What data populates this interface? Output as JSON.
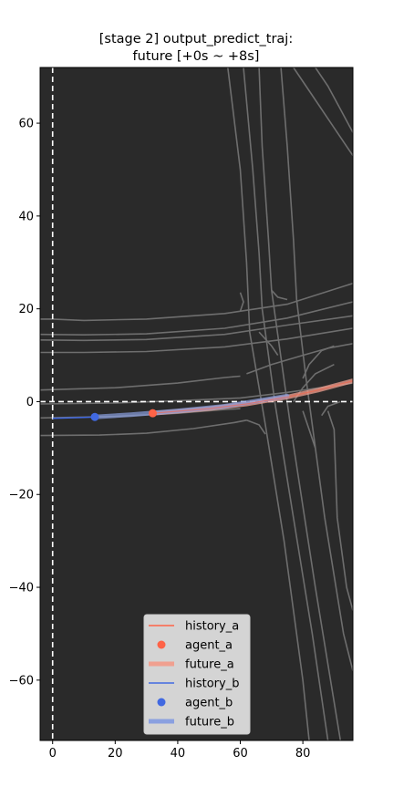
{
  "chart_data": {
    "type": "line",
    "title_lines": [
      "[stage 2] output_predict_traj:",
      "future [+0s ~ +8s]"
    ],
    "xlim": [
      -4,
      96
    ],
    "ylim": [
      -73,
      72
    ],
    "xticks": [
      0,
      20,
      40,
      60,
      80
    ],
    "yticks": [
      -60,
      -40,
      -20,
      0,
      20,
      40,
      60
    ],
    "xtick_labels": [
      "0",
      "20",
      "40",
      "60",
      "80"
    ],
    "ytick_labels": [
      "−60",
      "−40",
      "−20",
      "0",
      "20",
      "40",
      "60"
    ],
    "grid": false,
    "legend_position": "lower center",
    "colors": {
      "background": "#2a2a2a",
      "lane": "#6e6e6e",
      "history_a": "#ff6347",
      "future_a": "#f0a090",
      "history_b": "#4169e1",
      "future_b": "#8aa0e0",
      "future_overlap": "#8a6aa8",
      "axis_cross": "#ffffff"
    },
    "series": [
      {
        "name": "history_a",
        "kind": "line",
        "x": [],
        "y": []
      },
      {
        "name": "agent_a",
        "kind": "point",
        "x": [
          32
        ],
        "y": [
          -2.5
        ]
      },
      {
        "name": "future_a",
        "kind": "thick_line",
        "x": [
          32,
          50,
          62,
          75,
          85,
          96
        ],
        "y": [
          -2.5,
          -1.5,
          -0.5,
          1.0,
          2.5,
          4.5
        ]
      },
      {
        "name": "history_b",
        "kind": "line",
        "x": [
          0,
          5,
          10,
          13.5
        ],
        "y": [
          -3.6,
          -3.5,
          -3.4,
          -3.3
        ]
      },
      {
        "name": "agent_b",
        "kind": "point",
        "x": [
          13.5
        ],
        "y": [
          -3.3
        ]
      },
      {
        "name": "future_b",
        "kind": "thick_line",
        "x": [
          13.5,
          25,
          40,
          55,
          66,
          75
        ],
        "y": [
          -3.3,
          -2.8,
          -2.0,
          -1.0,
          0.2,
          1.2
        ]
      }
    ],
    "lanes": [
      [
        [
          -4,
          17.8
        ],
        [
          0,
          17.8
        ],
        [
          10,
          17.5
        ],
        [
          30,
          17.8
        ],
        [
          55,
          19
        ],
        [
          75,
          21
        ],
        [
          96,
          25.5
        ]
      ],
      [
        [
          -4,
          14.5
        ],
        [
          10,
          14.4
        ],
        [
          30,
          14.6
        ],
        [
          55,
          15.8
        ],
        [
          75,
          18
        ],
        [
          96,
          21.5
        ]
      ],
      [
        [
          -4,
          13.3
        ],
        [
          10,
          13.2
        ],
        [
          30,
          13.4
        ],
        [
          55,
          14.5
        ],
        [
          75,
          16.5
        ],
        [
          96,
          18.5
        ]
      ],
      [
        [
          -4,
          10.6
        ],
        [
          10,
          10.6
        ],
        [
          30,
          10.8
        ],
        [
          55,
          11.8
        ],
        [
          75,
          13.5
        ],
        [
          96,
          15.8
        ]
      ],
      [
        [
          -4,
          2.5
        ],
        [
          20,
          3
        ],
        [
          40,
          4
        ],
        [
          55,
          5.2
        ],
        [
          60,
          5.5
        ]
      ],
      [
        [
          62,
          6
        ],
        [
          70,
          8
        ],
        [
          80,
          10
        ],
        [
          88,
          11.5
        ],
        [
          96,
          12.5
        ]
      ],
      [
        [
          -4,
          -0.5
        ],
        [
          20,
          -0.3
        ],
        [
          40,
          0.2
        ],
        [
          60,
          0.8
        ],
        [
          75,
          2
        ],
        [
          96,
          4
        ]
      ],
      [
        [
          -4,
          -3.5
        ],
        [
          20,
          -3.2
        ],
        [
          40,
          -2.5
        ],
        [
          55,
          -1.7
        ],
        [
          60,
          -1.5
        ]
      ],
      [
        [
          -4,
          -7.3
        ],
        [
          15,
          -7.2
        ],
        [
          30,
          -6.8
        ],
        [
          45,
          -5.8
        ],
        [
          58,
          -4.5
        ],
        [
          62,
          -4
        ]
      ],
      [
        [
          56,
          72
        ],
        [
          60,
          50
        ],
        [
          62,
          30
        ],
        [
          63,
          15
        ],
        [
          68,
          -5
        ],
        [
          74,
          -30
        ],
        [
          80,
          -60
        ],
        [
          82,
          -73
        ]
      ],
      [
        [
          61,
          72
        ],
        [
          64,
          50
        ],
        [
          66,
          32
        ],
        [
          67,
          20
        ],
        [
          71,
          0
        ],
        [
          77,
          -25
        ],
        [
          83,
          -50
        ],
        [
          88,
          -73
        ]
      ],
      [
        [
          66,
          72
        ],
        [
          67,
          55
        ],
        [
          69,
          35
        ],
        [
          70,
          24
        ],
        [
          76,
          -5
        ],
        [
          84,
          -40
        ],
        [
          92,
          -73
        ]
      ],
      [
        [
          73,
          72
        ],
        [
          75,
          55
        ],
        [
          77,
          35
        ],
        [
          78,
          22
        ],
        [
          81,
          5
        ],
        [
          87,
          -25
        ],
        [
          93,
          -50
        ],
        [
          96,
          -58
        ]
      ],
      [
        [
          84,
          72
        ],
        [
          88,
          68
        ],
        [
          92,
          63
        ],
        [
          96,
          58
        ]
      ],
      [
        [
          77,
          72
        ],
        [
          83,
          66
        ],
        [
          90,
          59
        ],
        [
          96,
          53
        ]
      ],
      [
        [
          60,
          23.5
        ],
        [
          61,
          21.5
        ],
        [
          60,
          19.5
        ]
      ],
      [
        [
          70,
          24
        ],
        [
          72,
          22.5
        ],
        [
          75,
          22
        ]
      ],
      [
        [
          66,
          15
        ],
        [
          70,
          12
        ],
        [
          72,
          10
        ]
      ],
      [
        [
          80,
          5
        ],
        [
          82,
          8
        ],
        [
          86,
          11
        ],
        [
          90,
          12
        ]
      ],
      [
        [
          62,
          -4
        ],
        [
          66,
          -5
        ],
        [
          68,
          -7
        ]
      ],
      [
        [
          80,
          -2
        ],
        [
          82,
          -6
        ],
        [
          84,
          -10
        ]
      ],
      [
        [
          88,
          -2
        ],
        [
          90,
          -6
        ],
        [
          91,
          -25
        ],
        [
          94,
          -40
        ],
        [
          96,
          -45
        ]
      ],
      [
        [
          86,
          -3
        ],
        [
          88,
          -1
        ],
        [
          92,
          0
        ]
      ],
      [
        [
          77,
          0
        ],
        [
          80,
          3
        ],
        [
          84,
          6
        ],
        [
          90,
          8
        ]
      ]
    ]
  }
}
